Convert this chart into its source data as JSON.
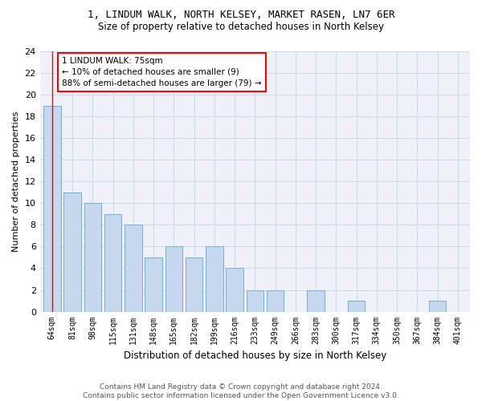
{
  "title1": "1, LINDUM WALK, NORTH KELSEY, MARKET RASEN, LN7 6ER",
  "title2": "Size of property relative to detached houses in North Kelsey",
  "xlabel": "Distribution of detached houses by size in North Kelsey",
  "ylabel": "Number of detached properties",
  "categories": [
    "64sqm",
    "81sqm",
    "98sqm",
    "115sqm",
    "131sqm",
    "148sqm",
    "165sqm",
    "182sqm",
    "199sqm",
    "216sqm",
    "233sqm",
    "249sqm",
    "266sqm",
    "283sqm",
    "300sqm",
    "317sqm",
    "334sqm",
    "350sqm",
    "367sqm",
    "384sqm",
    "401sqm"
  ],
  "values": [
    19,
    11,
    10,
    9,
    8,
    5,
    6,
    5,
    6,
    4,
    2,
    2,
    0,
    2,
    0,
    1,
    0,
    0,
    0,
    1,
    0
  ],
  "bar_color": "#c5d8ed",
  "bar_edge_color": "#7aadd4",
  "annotation_text": "1 LINDUM WALK: 75sqm\n← 10% of detached houses are smaller (9)\n88% of semi-detached houses are larger (79) →",
  "annotation_box_color": "white",
  "annotation_box_edge_color": "red",
  "ylim": [
    0,
    24
  ],
  "yticks": [
    0,
    2,
    4,
    6,
    8,
    10,
    12,
    14,
    16,
    18,
    20,
    22,
    24
  ],
  "grid_color": "#d0d8e8",
  "background_color": "#eef2f8",
  "footer": "Contains HM Land Registry data © Crown copyright and database right 2024.\nContains public sector information licensed under the Open Government Licence v3.0."
}
